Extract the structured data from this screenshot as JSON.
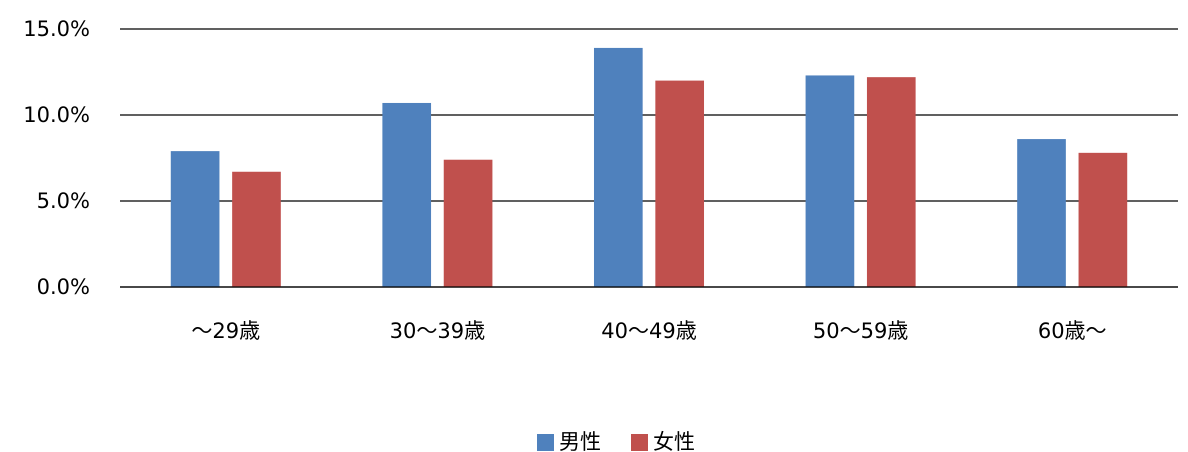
{
  "chart_data": {
    "type": "bar",
    "categories": [
      "〜29歳",
      "30〜39歳",
      "40〜49歳",
      "50〜59歳",
      "60歳〜"
    ],
    "series": [
      {
        "name": "男性",
        "values": [
          7.9,
          10.7,
          13.9,
          12.3,
          8.6
        ],
        "color": "#4F81BD"
      },
      {
        "name": "女性",
        "values": [
          6.7,
          7.4,
          12.0,
          12.2,
          7.8
        ],
        "color": "#C0504D"
      }
    ],
    "yticks": [
      "0.0%",
      "5.0%",
      "10.0%",
      "15.0%"
    ],
    "ylim": [
      0,
      15
    ],
    "grid": true,
    "legend_position": "bottom"
  }
}
